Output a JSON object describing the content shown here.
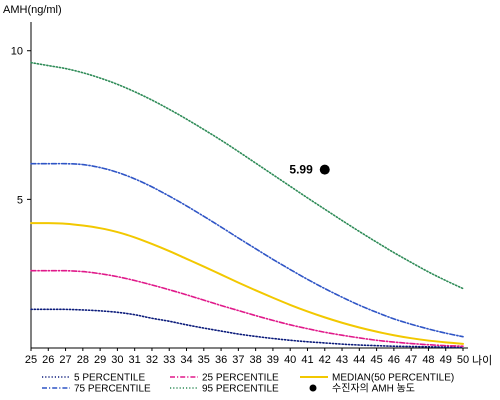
{
  "chart_data": {
    "type": "line",
    "ylabel": "AMH(ng/ml)",
    "xlabel": "나이",
    "xlim": [
      25,
      50
    ],
    "ylim": [
      0,
      11
    ],
    "x_ticks": [
      25,
      26,
      27,
      28,
      29,
      30,
      31,
      32,
      33,
      34,
      35,
      36,
      37,
      38,
      39,
      40,
      41,
      42,
      43,
      44,
      45,
      46,
      47,
      48,
      49,
      50
    ],
    "y_ticks": [
      5,
      10
    ],
    "grid": false,
    "legend_position": "bottom",
    "x": [
      25,
      26,
      27,
      28,
      29,
      30,
      31,
      32,
      33,
      34,
      35,
      36,
      37,
      38,
      39,
      40,
      41,
      42,
      43,
      44,
      45,
      46,
      47,
      48,
      49,
      50
    ],
    "series": [
      {
        "name": "5 PERCENTILE",
        "color": "#0a1a7a",
        "dash": "dotted",
        "values": [
          1.3,
          1.3,
          1.3,
          1.28,
          1.25,
          1.2,
          1.12,
          1.0,
          0.9,
          0.78,
          0.67,
          0.57,
          0.47,
          0.39,
          0.32,
          0.26,
          0.21,
          0.17,
          0.13,
          0.1,
          0.08,
          0.06,
          0.05,
          0.04,
          0.03,
          0.02
        ]
      },
      {
        "name": "25 PERCENTILE",
        "color": "#e0198a",
        "dash": "dashdot",
        "values": [
          2.6,
          2.6,
          2.6,
          2.57,
          2.5,
          2.4,
          2.27,
          2.12,
          1.96,
          1.79,
          1.61,
          1.43,
          1.26,
          1.09,
          0.93,
          0.78,
          0.65,
          0.53,
          0.43,
          0.34,
          0.26,
          0.2,
          0.15,
          0.11,
          0.08,
          0.06
        ]
      },
      {
        "name": "MEDIAN(50 PERCENTILE)",
        "color": "#f2c800",
        "dash": "solid",
        "values": [
          4.2,
          4.2,
          4.18,
          4.12,
          4.03,
          3.9,
          3.72,
          3.5,
          3.26,
          3.0,
          2.74,
          2.47,
          2.2,
          1.94,
          1.69,
          1.45,
          1.23,
          1.03,
          0.85,
          0.69,
          0.55,
          0.43,
          0.33,
          0.25,
          0.19,
          0.14
        ]
      },
      {
        "name": "75 PERCENTILE",
        "color": "#2f55c6",
        "dash": "dashdot",
        "values": [
          6.2,
          6.2,
          6.2,
          6.17,
          6.07,
          5.91,
          5.69,
          5.42,
          5.11,
          4.78,
          4.43,
          4.07,
          3.7,
          3.34,
          2.98,
          2.64,
          2.31,
          2.0,
          1.71,
          1.44,
          1.2,
          0.98,
          0.8,
          0.64,
          0.5,
          0.38
        ]
      },
      {
        "name": "95 PERCENTILE",
        "color": "#2e8b57",
        "dash": "dotted",
        "values": [
          9.6,
          9.5,
          9.4,
          9.26,
          9.08,
          8.87,
          8.62,
          8.34,
          8.03,
          7.7,
          7.35,
          6.99,
          6.61,
          6.22,
          5.83,
          5.44,
          5.05,
          4.67,
          4.29,
          3.92,
          3.56,
          3.21,
          2.88,
          2.56,
          2.27,
          2.0
        ]
      }
    ],
    "marker": {
      "name": "수진자의 AMH 농도",
      "x": 42,
      "y": 6.0,
      "label": "5.99"
    }
  }
}
